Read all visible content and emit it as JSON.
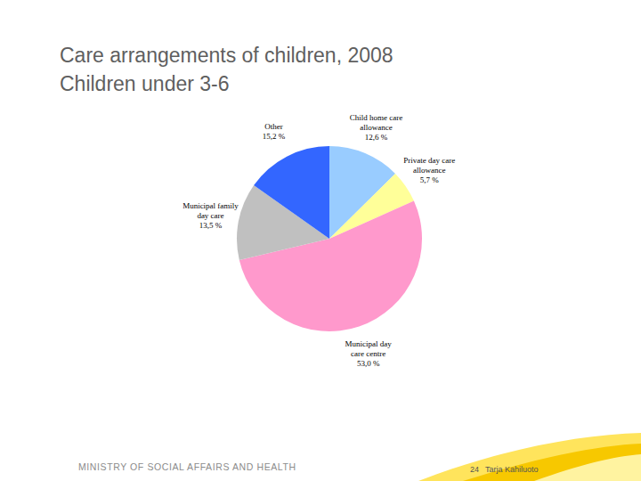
{
  "chart_data": {
    "type": "pie",
    "title": "Care arrangements of children, 2008",
    "subtitle": "Children under 3-6",
    "categories": [
      "Child home care allowance",
      "Private day care allowance",
      "Municipal day care centre",
      "Municipal family day care",
      "Other"
    ],
    "values": [
      12.6,
      5.7,
      53.0,
      13.5,
      15.2
    ],
    "value_labels": [
      "12,6 %",
      "5,7 %",
      "53,0 %",
      "13,5 %",
      "15,2 %"
    ],
    "colors": [
      "#99ccff",
      "#ffff99",
      "#ff99cc",
      "#c0c0c0",
      "#3366ff"
    ],
    "data_labels": true
  },
  "footer": {
    "organization": "MINISTRY OF SOCIAL AFFAIRS AND HEALTH",
    "page": 24,
    "author": "Tarja Kahiluoto"
  }
}
